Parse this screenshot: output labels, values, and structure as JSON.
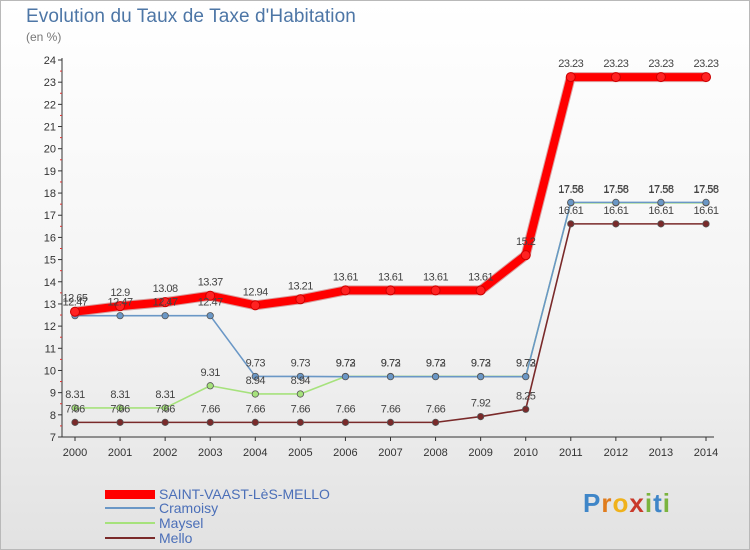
{
  "chart_data": {
    "type": "line",
    "title": "Evolution du Taux de Taxe d'Habitation",
    "subtitle": "(en %)",
    "xlabel": "",
    "ylabel": "",
    "ylim": [
      7,
      24
    ],
    "yticks": [
      "7",
      "8",
      "9",
      "10",
      "11",
      "12",
      "13",
      "14",
      "15",
      "16",
      "17",
      "18",
      "19",
      "20",
      "21",
      "22",
      "23",
      "24"
    ],
    "x": [
      "2000",
      "2001",
      "2002",
      "2003",
      "2004",
      "2005",
      "2006",
      "2007",
      "2008",
      "2009",
      "2010",
      "2011",
      "2012",
      "2013",
      "2014"
    ],
    "series": [
      {
        "name": "SAINT-VAAST-LèS-MELLO",
        "color": "#ff0000",
        "values": [
          12.65,
          12.9,
          13.08,
          13.37,
          12.94,
          13.21,
          13.61,
          13.61,
          13.61,
          13.61,
          15.2,
          23.23,
          23.23,
          23.23,
          23.23
        ],
        "labels": [
          "12.65",
          "12.9",
          "13.08",
          "13.37",
          "12.94",
          "13.21",
          "13.61",
          "13.61",
          "13.61",
          "13.61",
          "15.2",
          "23.23",
          "23.23",
          "23.23",
          "23.23"
        ]
      },
      {
        "name": "Cramoisy",
        "color": "#6a97c6",
        "values": [
          12.47,
          12.47,
          12.47,
          12.47,
          9.73,
          9.73,
          9.72,
          9.72,
          9.72,
          9.72,
          9.72,
          17.58,
          17.58,
          17.58,
          17.58
        ],
        "labels": [
          "12.47",
          "12.47",
          "12.47",
          "12.47",
          "9.73",
          "9.73",
          "9.72",
          "9.72",
          "9.72",
          "9.72",
          "9.72",
          "17.58",
          "17.58",
          "17.58",
          "17.58"
        ]
      },
      {
        "name": "Maysel",
        "color": "#a6e27c",
        "values": [
          8.31,
          8.31,
          8.31,
          9.31,
          8.94,
          8.94,
          9.73,
          9.73,
          9.73,
          9.73,
          9.73,
          17.56,
          17.56,
          17.56,
          17.56
        ],
        "labels": [
          "8.31",
          "8.31",
          "8.31",
          "9.31",
          "8.94",
          "8.94",
          "9.73",
          "9.73",
          "9.73",
          "9.73",
          "9.73",
          "17.56",
          "17.56",
          "17.56",
          "17.56"
        ]
      },
      {
        "name": "Mello",
        "color": "#7a2a2a",
        "values": [
          7.66,
          7.66,
          7.66,
          7.66,
          7.66,
          7.66,
          7.66,
          7.66,
          7.66,
          7.92,
          8.25,
          16.61,
          16.61,
          16.61,
          16.61
        ],
        "labels": [
          "7.66",
          "7.66",
          "7.66",
          "7.66",
          "7.66",
          "7.66",
          "7.66",
          "7.66",
          "7.66",
          "7.92",
          "8.25",
          "16.61",
          "16.61",
          "16.61",
          "16.61"
        ]
      }
    ],
    "legend_position": "bottom-left",
    "grid": false
  },
  "logo": {
    "text": "Proxiti"
  }
}
